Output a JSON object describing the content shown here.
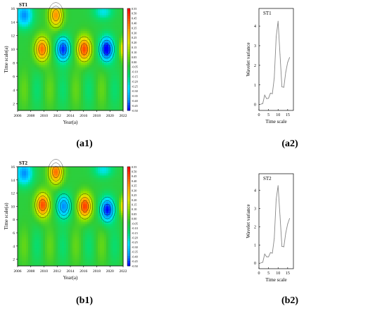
{
  "captions": {
    "a1": "(a1)",
    "a2": "(a2)",
    "b1": "(b1)",
    "b2": "(b2)"
  },
  "chart_data": [
    {
      "id": "a1",
      "type": "heatmap",
      "title": "ST1",
      "xlabel": "Year(a)",
      "ylabel": "Time scale(a)",
      "xlim": [
        2006,
        2022
      ],
      "ylim": [
        1,
        16
      ],
      "x_ticks": [
        "2006",
        "2008",
        "2010",
        "2012",
        "2014",
        "2016",
        "2018",
        "2020",
        "2022"
      ],
      "y_ticks": [
        "2",
        "4",
        "6",
        "8",
        "10",
        "12",
        "14",
        "16"
      ],
      "colorbar_ticks": [
        "0.55",
        "0.50",
        "0.45",
        "0.40",
        "0.35",
        "0.30",
        "0.25",
        "0.20",
        "0.15",
        "0.10",
        "0.05",
        "0.00",
        "-0.05",
        "-0.10",
        "-0.15",
        "-0.20",
        "-0.25",
        "-0.30",
        "-0.35",
        "-0.40",
        "-0.45",
        "-0.50"
      ],
      "zlim": [
        -0.5,
        0.55
      ],
      "colormap": [
        "#0000ff",
        "#00a0ff",
        "#00e6ff",
        "#00e07a",
        "#33cc33",
        "#88e000",
        "#e6e600",
        "#ffaa00",
        "#ff5500",
        "#ff0000"
      ],
      "grid": false,
      "features": [
        {
          "label": "positive",
          "year": 2009.7,
          "scale": 10,
          "value": 0.45
        },
        {
          "label": "negative",
          "year": 2012.9,
          "scale": 10,
          "value": -0.42
        },
        {
          "label": "positive",
          "year": 2016.1,
          "scale": 10,
          "value": 0.5
        },
        {
          "label": "negative",
          "year": 2019.5,
          "scale": 10,
          "value": -0.48
        },
        {
          "label": "positive",
          "year": 2011.8,
          "scale": 15,
          "value": 0.4
        }
      ]
    },
    {
      "id": "a2",
      "type": "line",
      "title": "ST1",
      "xlabel": "Time scale",
      "ylabel": "Wavelet variance",
      "xlim": [
        0,
        18
      ],
      "ylim": [
        -0.3,
        4.9
      ],
      "x_ticks": [
        "0",
        "5",
        "10",
        "15"
      ],
      "y_ticks": [
        "0",
        "1",
        "2",
        "3",
        "4"
      ],
      "x": [
        1,
        2,
        3,
        4,
        5,
        6,
        7,
        8,
        9,
        10,
        11,
        12,
        13,
        14,
        15,
        16
      ],
      "y": [
        0.02,
        0.05,
        0.48,
        0.3,
        0.32,
        0.58,
        0.55,
        1.35,
        3.45,
        4.25,
        2.55,
        0.9,
        0.88,
        1.65,
        2.15,
        2.4
      ],
      "color": "#888888"
    },
    {
      "id": "b1",
      "type": "heatmap",
      "title": "ST2",
      "xlabel": "Year(a)",
      "ylabel": "Time scale(a)",
      "xlim": [
        2006,
        2022
      ],
      "ylim": [
        1,
        16
      ],
      "x_ticks": [
        "2006",
        "2008",
        "2010",
        "2012",
        "2014",
        "2016",
        "2018",
        "2020",
        "2022"
      ],
      "y_ticks": [
        "2",
        "4",
        "6",
        "8",
        "10",
        "12",
        "14",
        "16"
      ],
      "colorbar_ticks": [
        "0.55",
        "0.50",
        "0.45",
        "0.40",
        "0.35",
        "0.30",
        "0.25",
        "0.20",
        "0.15",
        "0.10",
        "0.05",
        "0.00",
        "-0.05",
        "-0.10",
        "-0.15",
        "-0.20",
        "-0.25",
        "-0.30",
        "-0.35",
        "-0.40",
        "-0.45",
        "-0.50"
      ],
      "zlim": [
        -0.5,
        0.55
      ],
      "colormap": [
        "#0000ff",
        "#00a0ff",
        "#00e6ff",
        "#00e07a",
        "#33cc33",
        "#88e000",
        "#e6e600",
        "#ffaa00",
        "#ff5500",
        "#ff0000"
      ],
      "grid": false,
      "features": [
        {
          "label": "positive",
          "year": 2009.8,
          "scale": 10.2,
          "value": 0.5
        },
        {
          "label": "negative",
          "year": 2013.0,
          "scale": 10,
          "value": -0.35
        },
        {
          "label": "positive",
          "year": 2016.2,
          "scale": 10,
          "value": 0.52
        },
        {
          "label": "negative",
          "year": 2019.6,
          "scale": 9.5,
          "value": -0.45
        },
        {
          "label": "positive",
          "year": 2011.8,
          "scale": 15.2,
          "value": 0.45
        }
      ]
    },
    {
      "id": "b2",
      "type": "line",
      "title": "ST2",
      "xlabel": "Time scale",
      "ylabel": "Wavelet variance",
      "xlim": [
        0,
        18
      ],
      "ylim": [
        -0.3,
        4.9
      ],
      "x_ticks": [
        "0",
        "5",
        "10",
        "15"
      ],
      "y_ticks": [
        "0",
        "1",
        "2",
        "3",
        "4"
      ],
      "x": [
        1,
        2,
        3,
        4,
        5,
        6,
        7,
        8,
        9,
        10,
        11,
        12,
        13,
        14,
        15,
        16
      ],
      "y": [
        0.02,
        0.05,
        0.5,
        0.35,
        0.35,
        0.58,
        0.55,
        1.35,
        3.5,
        4.25,
        2.6,
        0.92,
        0.9,
        1.65,
        2.15,
        2.45
      ],
      "color": "#888888"
    }
  ]
}
